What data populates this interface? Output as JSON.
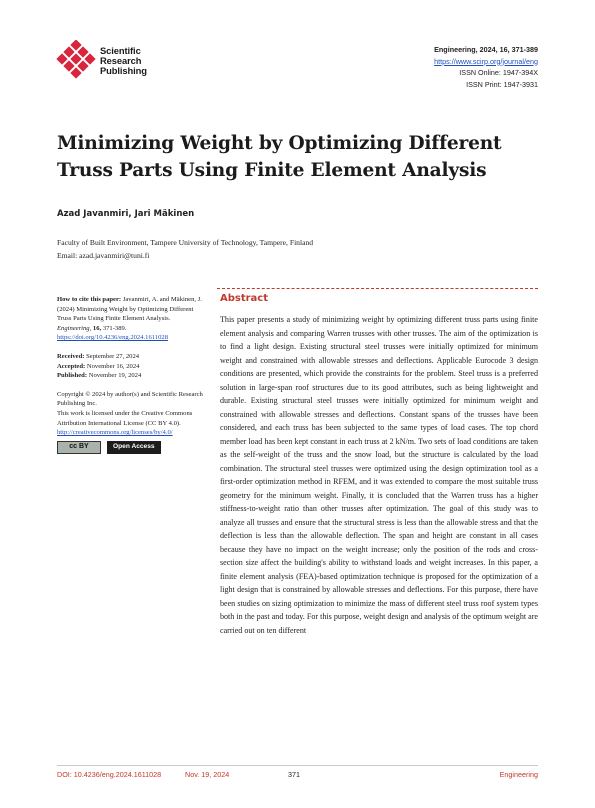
{
  "publisher": {
    "logo_icon": "scirp-diamond-logo",
    "line1": "Scientific",
    "line2": "Research",
    "line3": "Publishing",
    "brand_color": "#d7263d"
  },
  "journal": {
    "citation": "Engineering, 2024, 16, 371-389",
    "url": "https://www.scirp.org/journal/eng",
    "issn_online": "ISSN Online: 1947-394X",
    "issn_print": "ISSN Print: 1947-3931"
  },
  "title": "Minimizing Weight by Optimizing Different Truss Parts Using Finite Element Analysis",
  "authors": "Azad Javanmiri, Jari Mäkinen",
  "affiliation": "Faculty of Built Environment, Tampere University of Technology, Tampere, Finland",
  "email": "Email: azad.javanmiri@tuni.fi",
  "sidebar": {
    "cite_label": "How to cite this paper:",
    "cite_text": "Javanmiri, A. and Mäkinen, J. (2024) Minimizing Weight by Optimizing Different Truss Parts Using Finite Element Analysis.",
    "cite_journal": "Engineering,",
    "cite_vol": "16,",
    "cite_pages": "371-389.",
    "doi_link": "https://doi.org/10.4236/eng.2024.1611028",
    "received_label": "Received:",
    "received": "September 27, 2024",
    "accepted_label": "Accepted:",
    "accepted": "November 16, 2024",
    "published_label": "Published:",
    "published": "November 19, 2024",
    "copyright": "Copyright © 2024 by author(s) and Scientific Research Publishing Inc.",
    "license": "This work is licensed under the Creative Commons Attribution International License (CC BY 4.0).",
    "license_link": "http://creativecommons.org/licenses/by/4.0/",
    "cc_badge": "cc BY",
    "oa_badge": "Open Access"
  },
  "abstract": {
    "heading": "Abstract",
    "accent_color": "#c0392b",
    "body": "This paper presents a study of minimizing weight by optimizing different truss parts using finite element analysis and comparing Warren trusses with other trusses. The aim of the optimization is to find a light design. Existing structural steel trusses were initially optimized for minimum weight and constrained with allowable stresses and deflections. Applicable Eurocode 3 design conditions are presented, which provide the constraints for the problem. Steel truss is a preferred solution in large-span roof structures due to its good attributes, such as being lightweight and durable. Existing structural steel trusses were initially optimized for minimum weight and constrained with allowable stresses and deflections. Constant spans of the trusses have been considered, and each truss has been subjected to the same types of load cases. The top chord member load has been kept constant in each truss at 2 kN/m. Two sets of load conditions are taken as the self-weight of the truss and the snow load, but the structure is calculated by the load combination. The structural steel trusses were optimized using the design optimization tool as a first-order optimization method in RFEM, and it was extended to compare the most suitable truss geometry for the minimum weight. Finally, it is concluded that the Warren truss has a higher stiffness-to-weight ratio than other trusses after optimization. The goal of this study was to analyze all trusses and ensure that the structural stress is less than the allowable stress and that the deflection is less than the allowable deflection. The span and height are constant in all cases because they have no impact on the weight increase; only the position of the rods and cross-section size affect the building's ability to withstand loads and weight increases. In this paper, a finite element analysis (FEA)-based optimization technique is proposed for the optimization of a light design that is constrained by allowable stresses and deflections. For this purpose, there have been studies on sizing optimization to minimize the mass of different steel truss roof system types both in the past and today. For this purpose, weight design and analysis of the optimum weight are carried out on ten different"
  },
  "footer": {
    "doi": "DOI: 10.4236/eng.2024.1611028",
    "date": "Nov. 19, 2024",
    "page": "371",
    "subject": "Engineering"
  }
}
